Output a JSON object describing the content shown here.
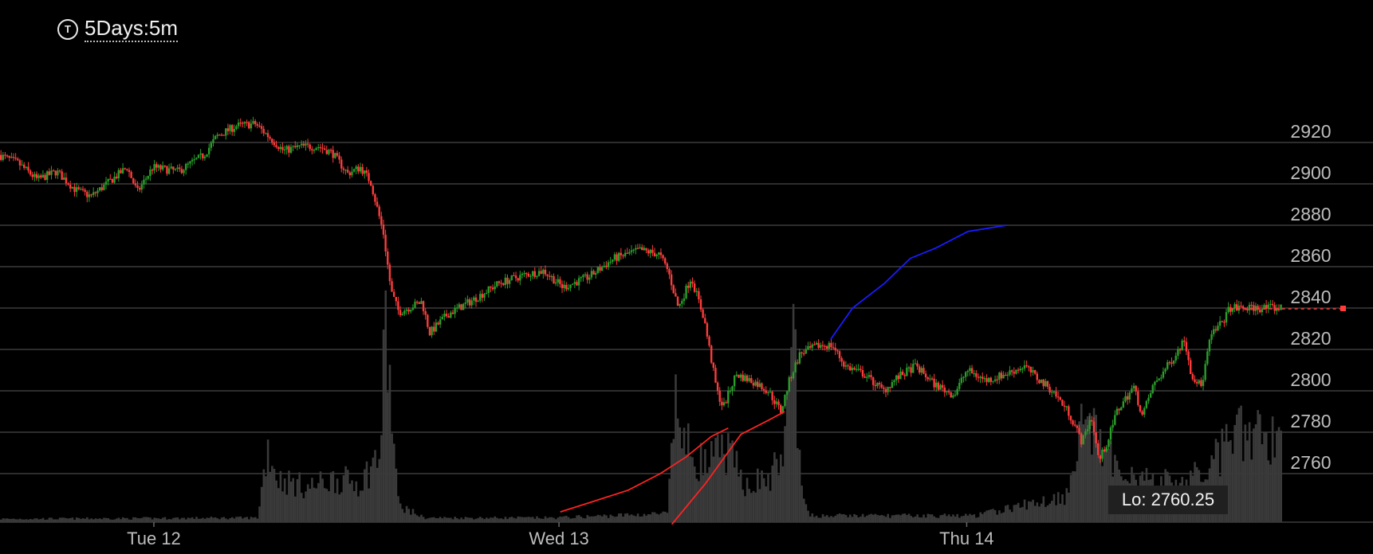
{
  "timeframe": {
    "icon": "tradingview-t-icon",
    "icon_glyph": "T",
    "label": "5Days:5m"
  },
  "low_marker": {
    "label": "Lo: 2760.25"
  },
  "colors": {
    "up": "#2a9d2a",
    "down": "#ff3b3b",
    "volume": "#3a3a3a",
    "grid": "#3c3c3c",
    "axis_text": "#bdbdbd",
    "ma_red": "#ff2222",
    "ma_blue": "#1a1aff"
  },
  "chart_data": {
    "type": "candlestick",
    "interval": "5m",
    "ylim": [
      2734,
      2940
    ],
    "y_ticks": [
      2760,
      2780,
      2800,
      2820,
      2840,
      2860,
      2880,
      2900,
      2920
    ],
    "x_ticks": [
      {
        "label": "Tue 12",
        "t": 0.12
      },
      {
        "label": "Wed 13",
        "t": 0.436
      },
      {
        "label": "Thu 14",
        "t": 0.754
      }
    ],
    "last_price": 2840,
    "low": 2760.25,
    "price_path": [
      [
        0.0,
        2914
      ],
      [
        0.015,
        2910
      ],
      [
        0.03,
        2902
      ],
      [
        0.045,
        2906
      ],
      [
        0.06,
        2897
      ],
      [
        0.072,
        2894
      ],
      [
        0.09,
        2903
      ],
      [
        0.1,
        2908
      ],
      [
        0.108,
        2896
      ],
      [
        0.12,
        2908
      ],
      [
        0.14,
        2906
      ],
      [
        0.16,
        2914
      ],
      [
        0.17,
        2923
      ],
      [
        0.185,
        2928
      ],
      [
        0.2,
        2929
      ],
      [
        0.212,
        2922
      ],
      [
        0.222,
        2916
      ],
      [
        0.235,
        2918
      ],
      [
        0.25,
        2918
      ],
      [
        0.26,
        2915
      ],
      [
        0.272,
        2905
      ],
      [
        0.282,
        2908
      ],
      [
        0.29,
        2901
      ],
      [
        0.3,
        2876
      ],
      [
        0.306,
        2848
      ],
      [
        0.312,
        2838
      ],
      [
        0.33,
        2843
      ],
      [
        0.336,
        2828
      ],
      [
        0.35,
        2837
      ],
      [
        0.37,
        2844
      ],
      [
        0.39,
        2852
      ],
      [
        0.41,
        2856
      ],
      [
        0.425,
        2858
      ],
      [
        0.44,
        2850
      ],
      [
        0.46,
        2855
      ],
      [
        0.48,
        2864
      ],
      [
        0.5,
        2868
      ],
      [
        0.515,
        2866
      ],
      [
        0.522,
        2858
      ],
      [
        0.53,
        2840
      ],
      [
        0.54,
        2855
      ],
      [
        0.55,
        2835
      ],
      [
        0.56,
        2800
      ],
      [
        0.565,
        2792
      ],
      [
        0.575,
        2808
      ],
      [
        0.59,
        2804
      ],
      [
        0.6,
        2800
      ],
      [
        0.61,
        2790
      ],
      [
        0.617,
        2806
      ],
      [
        0.625,
        2818
      ],
      [
        0.64,
        2822
      ],
      [
        0.65,
        2822
      ],
      [
        0.66,
        2812
      ],
      [
        0.675,
        2808
      ],
      [
        0.69,
        2800
      ],
      [
        0.7,
        2806
      ],
      [
        0.715,
        2812
      ],
      [
        0.73,
        2803
      ],
      [
        0.745,
        2798
      ],
      [
        0.755,
        2810
      ],
      [
        0.77,
        2805
      ],
      [
        0.785,
        2808
      ],
      [
        0.8,
        2812
      ],
      [
        0.81,
        2806
      ],
      [
        0.822,
        2800
      ],
      [
        0.835,
        2789
      ],
      [
        0.845,
        2775
      ],
      [
        0.852,
        2788
      ],
      [
        0.858,
        2766
      ],
      [
        0.865,
        2776
      ],
      [
        0.872,
        2790
      ],
      [
        0.885,
        2802
      ],
      [
        0.892,
        2788
      ],
      [
        0.9,
        2802
      ],
      [
        0.915,
        2815
      ],
      [
        0.925,
        2825
      ],
      [
        0.93,
        2808
      ],
      [
        0.938,
        2802
      ],
      [
        0.945,
        2826
      ],
      [
        0.955,
        2834
      ],
      [
        0.96,
        2840
      ]
    ],
    "volume_path": [
      [
        0.0,
        0.015
      ],
      [
        0.2,
        0.02
      ],
      [
        0.208,
        0.35
      ],
      [
        0.216,
        0.2
      ],
      [
        0.24,
        0.16
      ],
      [
        0.26,
        0.2
      ],
      [
        0.28,
        0.18
      ],
      [
        0.296,
        0.32
      ],
      [
        0.3,
        0.93
      ],
      [
        0.304,
        0.55
      ],
      [
        0.31,
        0.08
      ],
      [
        0.33,
        0.02
      ],
      [
        0.43,
        0.02
      ],
      [
        0.52,
        0.04
      ],
      [
        0.526,
        0.55
      ],
      [
        0.534,
        0.35
      ],
      [
        0.55,
        0.26
      ],
      [
        0.565,
        0.34
      ],
      [
        0.58,
        0.18
      ],
      [
        0.6,
        0.2
      ],
      [
        0.612,
        0.36
      ],
      [
        0.618,
        0.98
      ],
      [
        0.624,
        0.15
      ],
      [
        0.63,
        0.03
      ],
      [
        0.76,
        0.03
      ],
      [
        0.83,
        0.12
      ],
      [
        0.845,
        0.5
      ],
      [
        0.86,
        0.3
      ],
      [
        0.88,
        0.24
      ],
      [
        0.9,
        0.18
      ],
      [
        0.93,
        0.2
      ],
      [
        0.95,
        0.3
      ],
      [
        0.96,
        0.4
      ]
    ],
    "moving_averages": [
      {
        "color": "#ff2222",
        "points": [
          [
            0.437,
            2741.5
          ],
          [
            0.46,
            2746
          ],
          [
            0.49,
            2752
          ],
          [
            0.515,
            2760
          ],
          [
            0.535,
            2768
          ],
          [
            0.555,
            2778
          ],
          [
            0.568,
            2782
          ]
        ]
      },
      {
        "color": "#ff2222",
        "points": [
          [
            0.524,
            2735.5
          ],
          [
            0.55,
            2755
          ],
          [
            0.578,
            2779
          ],
          [
            0.6,
            2786
          ],
          [
            0.612,
            2790
          ]
        ]
      },
      {
        "color": "#1a1aff",
        "points": [
          [
            0.648,
            2825
          ],
          [
            0.665,
            2840
          ],
          [
            0.69,
            2852
          ],
          [
            0.71,
            2864
          ],
          [
            0.73,
            2869
          ],
          [
            0.755,
            2877
          ],
          [
            0.785,
            2880
          ]
        ]
      }
    ]
  }
}
